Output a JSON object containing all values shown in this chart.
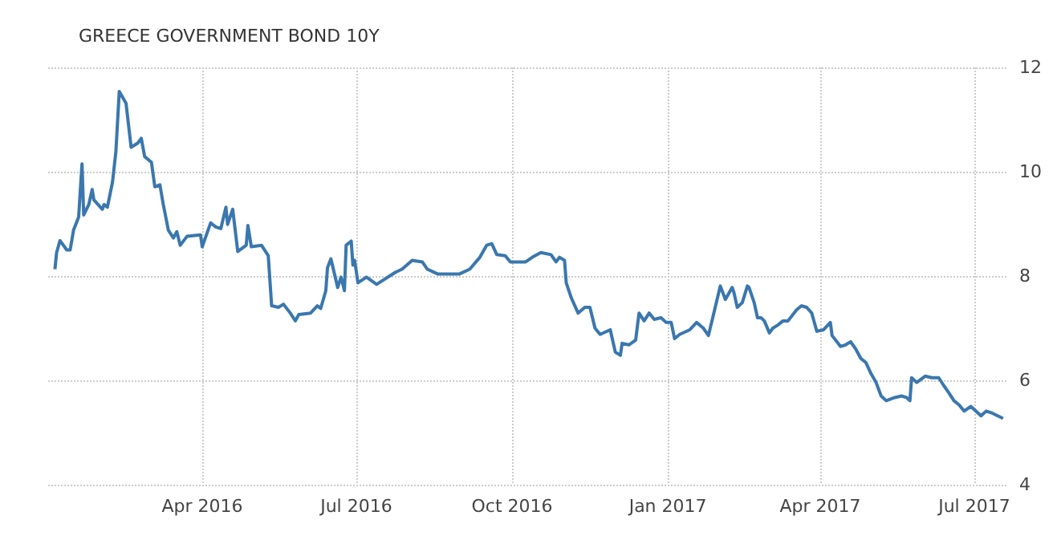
{
  "chart_data": {
    "type": "line",
    "title": "GREECE GOVERNMENT BOND 10Y",
    "x": [
      "2016-01-05",
      "2016-01-06",
      "2016-01-08",
      "2016-01-12",
      "2016-01-14",
      "2016-01-16",
      "2016-01-19",
      "2016-01-21",
      "2016-01-22",
      "2016-01-25",
      "2016-01-27",
      "2016-01-28",
      "2016-02-02",
      "2016-02-03",
      "2016-02-05",
      "2016-02-08",
      "2016-02-10",
      "2016-02-12",
      "2016-02-16",
      "2016-02-19",
      "2016-02-23",
      "2016-02-25",
      "2016-02-27",
      "2016-03-02",
      "2016-03-04",
      "2016-03-07",
      "2016-03-09",
      "2016-03-12",
      "2016-03-15",
      "2016-03-17",
      "2016-03-19",
      "2016-03-23",
      "2016-03-31",
      "2016-04-01",
      "2016-04-06",
      "2016-04-09",
      "2016-04-12",
      "2016-04-15",
      "2016-04-16",
      "2016-04-19",
      "2016-04-22",
      "2016-04-27",
      "2016-04-28",
      "2016-04-30",
      "2016-05-06",
      "2016-05-10",
      "2016-05-12",
      "2016-05-16",
      "2016-05-19",
      "2016-05-23",
      "2016-05-26",
      "2016-05-28",
      "2016-06-04",
      "2016-06-08",
      "2016-06-10",
      "2016-06-13",
      "2016-06-14",
      "2016-06-16",
      "2016-06-20",
      "2016-06-22",
      "2016-06-24",
      "2016-06-25",
      "2016-06-28",
      "2016-06-29",
      "2016-06-30",
      "2016-07-02",
      "2016-07-07",
      "2016-07-13",
      "2016-07-24",
      "2016-07-28",
      "2016-08-03",
      "2016-08-09",
      "2016-08-12",
      "2016-08-18",
      "2016-08-31",
      "2016-09-06",
      "2016-09-12",
      "2016-09-16",
      "2016-09-19",
      "2016-09-22",
      "2016-09-27",
      "2016-09-30",
      "2016-10-09",
      "2016-10-13",
      "2016-10-18",
      "2016-10-24",
      "2016-10-27",
      "2016-10-29",
      "2016-11-01",
      "2016-11-02",
      "2016-11-05",
      "2016-11-09",
      "2016-11-13",
      "2016-11-16",
      "2016-11-19",
      "2016-11-22",
      "2016-11-28",
      "2016-12-01",
      "2016-12-04",
      "2016-12-05",
      "2016-12-09",
      "2016-12-13",
      "2016-12-15",
      "2016-12-18",
      "2016-12-21",
      "2016-12-24",
      "2016-12-28",
      "2016-12-31",
      "2017-01-03",
      "2017-01-05",
      "2017-01-08",
      "2017-01-14",
      "2017-01-18",
      "2017-01-22",
      "2017-01-25",
      "2017-01-29",
      "2017-02-01",
      "2017-02-04",
      "2017-02-08",
      "2017-02-09",
      "2017-02-11",
      "2017-02-14",
      "2017-02-17",
      "2017-02-18",
      "2017-02-21",
      "2017-02-23",
      "2017-02-25",
      "2017-02-27",
      "2017-03-02",
      "2017-03-04",
      "2017-03-07",
      "2017-03-10",
      "2017-03-13",
      "2017-03-18",
      "2017-03-21",
      "2017-03-24",
      "2017-03-27",
      "2017-03-30",
      "2017-04-03",
      "2017-04-07",
      "2017-04-08",
      "2017-04-13",
      "2017-04-16",
      "2017-04-19",
      "2017-04-22",
      "2017-04-25",
      "2017-04-28",
      "2017-05-01",
      "2017-05-04",
      "2017-05-07",
      "2017-05-10",
      "2017-05-15",
      "2017-05-19",
      "2017-05-22",
      "2017-05-24",
      "2017-05-25",
      "2017-05-28",
      "2017-06-02",
      "2017-06-06",
      "2017-06-10",
      "2017-06-13",
      "2017-06-16",
      "2017-06-19",
      "2017-06-22",
      "2017-06-25",
      "2017-06-29",
      "2017-07-05",
      "2017-07-08",
      "2017-07-11",
      "2017-07-18"
    ],
    "series": [
      {
        "color": "#3a77ae",
        "values": [
          8.13,
          8.45,
          8.68,
          8.5,
          8.5,
          8.88,
          9.13,
          10.15,
          9.17,
          9.37,
          9.66,
          9.46,
          9.28,
          9.37,
          9.32,
          9.8,
          10.38,
          11.54,
          11.31,
          10.47,
          10.55,
          10.64,
          10.29,
          10.18,
          9.71,
          9.75,
          9.37,
          8.88,
          8.73,
          8.85,
          8.59,
          8.76,
          8.79,
          8.56,
          9.02,
          8.94,
          8.91,
          9.32,
          8.99,
          9.28,
          8.47,
          8.59,
          8.97,
          8.56,
          8.59,
          8.39,
          7.43,
          7.4,
          7.46,
          7.29,
          7.14,
          7.26,
          7.29,
          7.43,
          7.38,
          7.72,
          8.16,
          8.33,
          7.78,
          7.98,
          7.72,
          8.59,
          8.67,
          8.21,
          8.3,
          7.87,
          7.98,
          7.84,
          8.07,
          8.13,
          8.3,
          8.27,
          8.13,
          8.04,
          8.04,
          8.13,
          8.36,
          8.59,
          8.62,
          8.41,
          8.39,
          8.27,
          8.27,
          8.36,
          8.45,
          8.41,
          8.27,
          8.36,
          8.3,
          7.87,
          7.58,
          7.29,
          7.4,
          7.4,
          7.0,
          6.88,
          6.97,
          6.54,
          6.48,
          6.71,
          6.68,
          6.77,
          7.29,
          7.14,
          7.29,
          7.17,
          7.2,
          7.11,
          7.11,
          6.8,
          6.88,
          6.97,
          7.11,
          7.0,
          6.86,
          7.4,
          7.81,
          7.55,
          7.78,
          7.69,
          7.4,
          7.49,
          7.81,
          7.78,
          7.49,
          7.2,
          7.2,
          7.14,
          6.91,
          7.0,
          7.06,
          7.14,
          7.14,
          7.35,
          7.43,
          7.4,
          7.29,
          6.94,
          6.97,
          7.11,
          6.86,
          6.65,
          6.68,
          6.74,
          6.6,
          6.42,
          6.34,
          6.13,
          5.96,
          5.7,
          5.61,
          5.67,
          5.7,
          5.67,
          5.61,
          6.05,
          5.96,
          6.08,
          6.05,
          6.05,
          5.9,
          5.76,
          5.61,
          5.53,
          5.41,
          5.5,
          5.32,
          5.41,
          5.38,
          5.27
        ]
      }
    ],
    "xlim": [
      "2016-01-01",
      "2017-07-20"
    ],
    "xticks": [
      {
        "value": "2016-04-01",
        "label": "Apr 2016"
      },
      {
        "value": "2016-07-01",
        "label": "Jul 2016"
      },
      {
        "value": "2016-10-01",
        "label": "Oct 2016"
      },
      {
        "value": "2017-01-01",
        "label": "Jan 2017"
      },
      {
        "value": "2017-04-01",
        "label": "Apr 2017"
      },
      {
        "value": "2017-07-01",
        "label": "Jul 2017"
      }
    ],
    "ylim": [
      4,
      12
    ],
    "yticks": [
      4,
      6,
      8,
      10,
      12
    ],
    "grid": true,
    "line_style": "solid",
    "marker": "none"
  }
}
